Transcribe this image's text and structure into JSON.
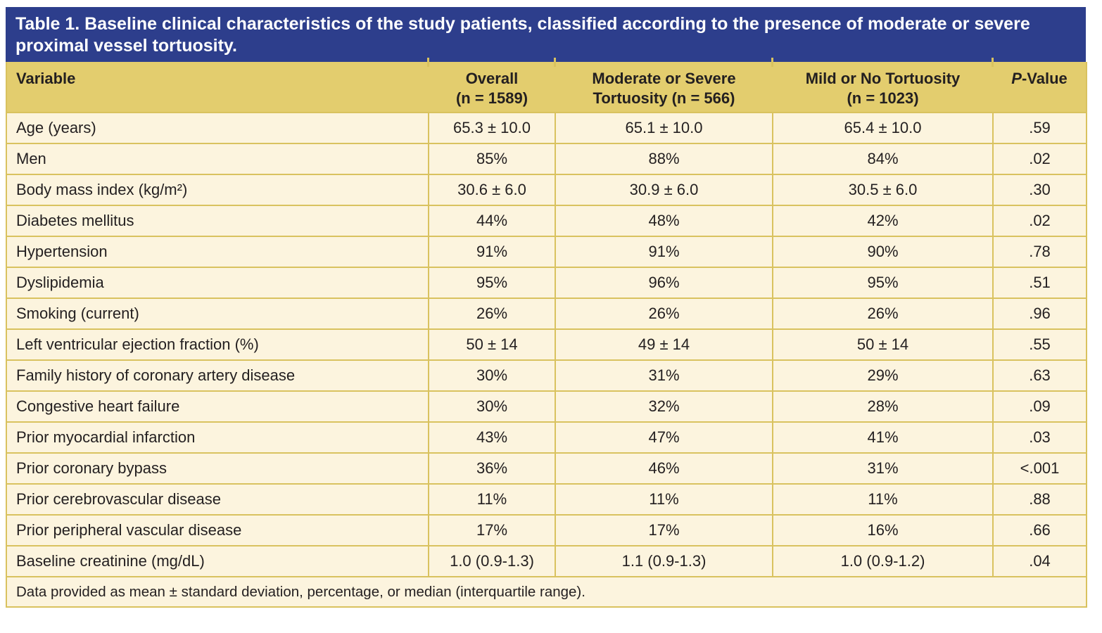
{
  "colors": {
    "title_bar_bg": "#2d3e8c",
    "title_text": "#ffffff",
    "header_bg": "#e3cd6e",
    "border_gold": "#d9c25f",
    "row_bg": "#fcf4de",
    "text_dark": "#231f20"
  },
  "table": {
    "title": "Table 1. Baseline clinical characteristics of the study patients, classified according to the presence of moderate or severe proximal vessel tortuosity.",
    "header": {
      "variable_label": "Variable",
      "columns": [
        {
          "line1": "Overall",
          "line2": "(n = 1589)"
        },
        {
          "line1": "Moderate or Severe",
          "line2": "Tortuosity (n = 566)"
        },
        {
          "line1": "Mild or No Tortuosity",
          "line2": "(n = 1023)"
        },
        {
          "italic": "P",
          "rest": "-Value"
        }
      ]
    },
    "rows": [
      {
        "variable": "Age (years)",
        "overall": "65.3 ± 10.0",
        "moderate_severe": "65.1 ± 10.0",
        "mild_none": "65.4 ± 10.0",
        "p_value": ".59"
      },
      {
        "variable": "Men",
        "overall": "85%",
        "moderate_severe": "88%",
        "mild_none": "84%",
        "p_value": ".02"
      },
      {
        "variable": "Body mass index (kg/m²)",
        "overall": "30.6 ± 6.0",
        "moderate_severe": "30.9 ± 6.0",
        "mild_none": "30.5 ± 6.0",
        "p_value": ".30"
      },
      {
        "variable": "Diabetes mellitus",
        "overall": "44%",
        "moderate_severe": "48%",
        "mild_none": "42%",
        "p_value": ".02"
      },
      {
        "variable": "Hypertension",
        "overall": "91%",
        "moderate_severe": "91%",
        "mild_none": "90%",
        "p_value": ".78"
      },
      {
        "variable": "Dyslipidemia",
        "overall": "95%",
        "moderate_severe": "96%",
        "mild_none": "95%",
        "p_value": ".51"
      },
      {
        "variable": "Smoking (current)",
        "overall": "26%",
        "moderate_severe": "26%",
        "mild_none": "26%",
        "p_value": ".96"
      },
      {
        "variable": "Left ventricular ejection fraction (%)",
        "overall": "50 ± 14",
        "moderate_severe": "49 ± 14",
        "mild_none": "50 ± 14",
        "p_value": ".55"
      },
      {
        "variable": "Family history of coronary artery disease",
        "overall": "30%",
        "moderate_severe": "31%",
        "mild_none": "29%",
        "p_value": ".63"
      },
      {
        "variable": "Congestive heart failure",
        "overall": "30%",
        "moderate_severe": "32%",
        "mild_none": "28%",
        "p_value": ".09"
      },
      {
        "variable": "Prior myocardial infarction",
        "overall": "43%",
        "moderate_severe": "47%",
        "mild_none": "41%",
        "p_value": ".03"
      },
      {
        "variable": "Prior coronary bypass",
        "overall": "36%",
        "moderate_severe": "46%",
        "mild_none": "31%",
        "p_value": "<.001"
      },
      {
        "variable": "Prior cerebrovascular disease",
        "overall": "11%",
        "moderate_severe": "11%",
        "mild_none": "11%",
        "p_value": ".88"
      },
      {
        "variable": "Prior peripheral vascular disease",
        "overall": "17%",
        "moderate_severe": "17%",
        "mild_none": "16%",
        "p_value": ".66"
      },
      {
        "variable": "Baseline creatinine (mg/dL)",
        "overall": "1.0 (0.9-1.3)",
        "moderate_severe": "1.1 (0.9-1.3)",
        "mild_none": "1.0 (0.9-1.2)",
        "p_value": ".04"
      }
    ],
    "footnote": "Data provided as mean ± standard deviation, percentage, or median (interquartile range)."
  }
}
